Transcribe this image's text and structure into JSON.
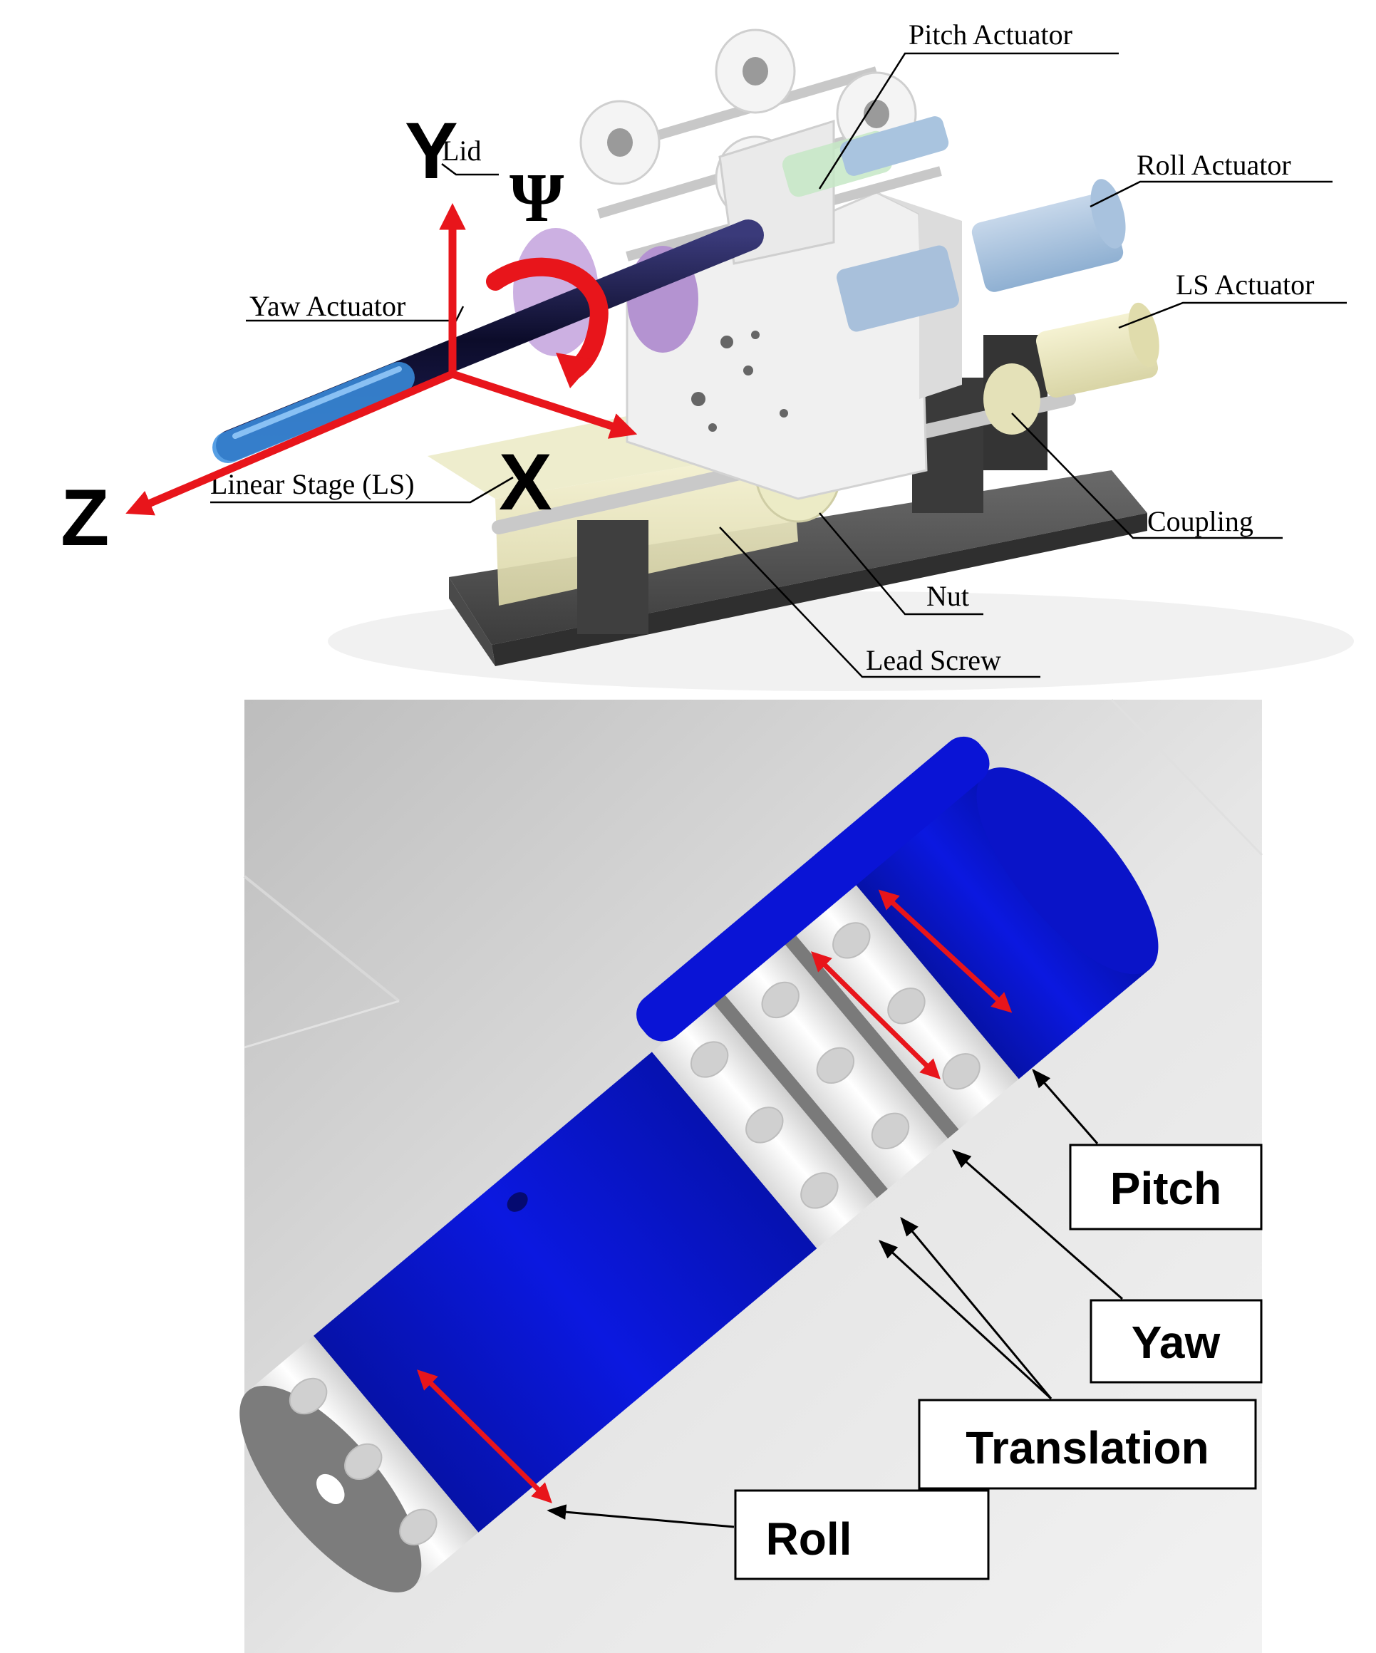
{
  "top_figure": {
    "labels": {
      "pitch_actuator": "Pitch Actuator",
      "lid": "Lid",
      "roll_actuator": "Roll Actuator",
      "yaw_actuator": "Yaw Actuator",
      "ls_actuator": "LS Actuator",
      "linear_stage": "Linear Stage (LS)",
      "coupling": "Coupling",
      "nut": "Nut",
      "lead_screw": "Lead Screw"
    },
    "axes": {
      "x": "X",
      "y": "Y",
      "z": "Z",
      "psi": "Ψ"
    }
  },
  "bottom_figure": {
    "labels": {
      "pitch": "Pitch",
      "yaw": "Yaw",
      "translation": "Translation",
      "roll": "Roll"
    }
  },
  "colors": {
    "axis_red": "#e8151b",
    "cylinder_blue": "#0a14d6",
    "ring_white": "#efefef"
  }
}
